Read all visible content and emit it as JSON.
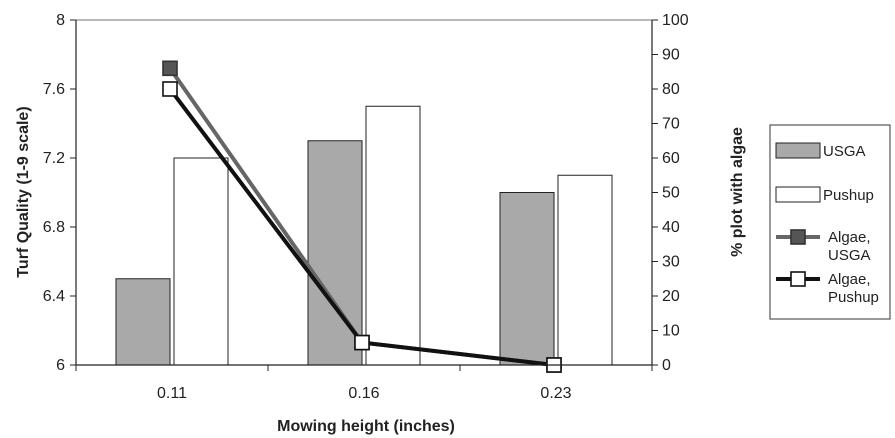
{
  "chart_data": {
    "type": "bar",
    "categories": [
      "0.11",
      "0.16",
      "0.23"
    ],
    "xlabel": "Mowing height (inches)",
    "ylabel": "Turf Quality (1-9 scale)",
    "y2label": "% plot with algae",
    "ylim": [
      6,
      8
    ],
    "yticks": [
      "6",
      "6.4",
      "6.8",
      "7.2",
      "7.6",
      "8"
    ],
    "y2lim": [
      0,
      100
    ],
    "y2ticks": [
      "0",
      "10",
      "20",
      "30",
      "40",
      "50",
      "60",
      "70",
      "80",
      "90",
      "100"
    ],
    "bar_series": [
      {
        "name": "USGA",
        "values": [
          6.5,
          7.3,
          7.0
        ],
        "color": "#a9a9a9"
      },
      {
        "name": "Pushup",
        "values": [
          7.2,
          7.5,
          7.1
        ],
        "color": "#ffffff"
      }
    ],
    "line_series": [
      {
        "name_lines": [
          "Algae,",
          "USGA"
        ],
        "values": [
          86,
          6.5,
          0
        ],
        "color": "#666666",
        "marker": "filled-square"
      },
      {
        "name_lines": [
          "Algae,",
          "Pushup"
        ],
        "values": [
          80,
          6.5,
          0
        ],
        "color": "#111111",
        "marker": "open-square"
      }
    ],
    "legend_position": "right",
    "grid": false
  }
}
